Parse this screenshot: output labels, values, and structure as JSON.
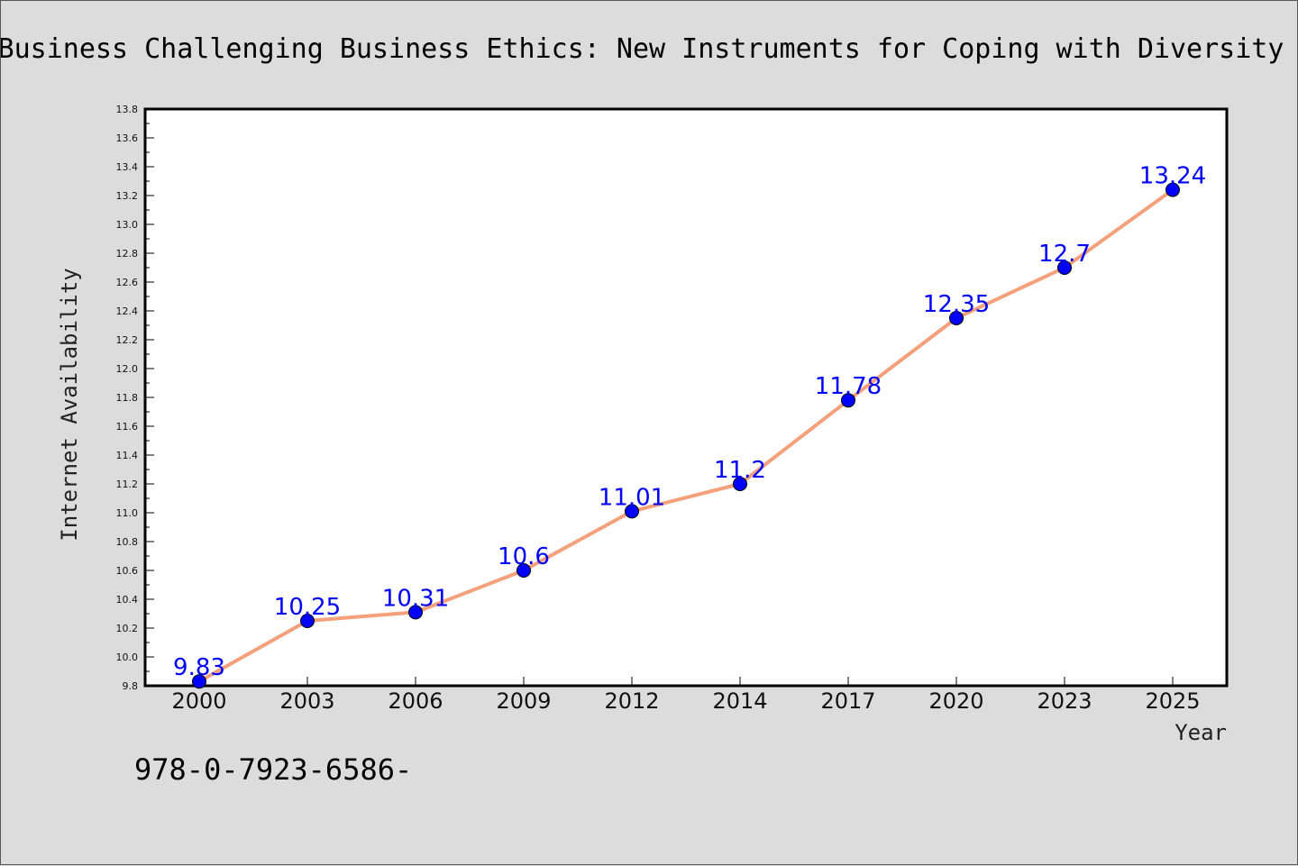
{
  "chart_data": {
    "type": "line",
    "title": "Business Challenging Business Ethics: New Instruments for Coping with Diversity",
    "xlabel": "Year",
    "ylabel": "Internet Availability",
    "categories": [
      "2000",
      "2003",
      "2006",
      "2009",
      "2012",
      "2014",
      "2017",
      "2020",
      "2023",
      "2025"
    ],
    "series": [
      {
        "values": [
          9.83,
          10.25,
          10.31,
          10.6,
          11.01,
          11.2,
          11.78,
          12.35,
          12.7,
          13.24
        ],
        "line_color": "#f4a07a",
        "marker_color": "#0000ff",
        "label_color": "#0000ff"
      }
    ],
    "ylim": [
      9.8,
      13.8
    ],
    "yticks": [
      "9.8",
      "10.0",
      "10.2",
      "10.4",
      "10.6",
      "10.8",
      "11.0",
      "11.2",
      "11.4",
      "11.6",
      "11.8",
      "12.0",
      "12.2",
      "12.4",
      "12.6",
      "12.8",
      "13.0",
      "13.2",
      "13.4",
      "13.6",
      "13.8"
    ],
    "grid": false,
    "data_labels": [
      "9.83",
      "10.25",
      "10.31",
      "10.6",
      "11.01",
      "11.2",
      "11.78",
      "12.35",
      "12.7",
      "13.24"
    ]
  },
  "footer": {
    "text": "978-0-7923-6586-"
  },
  "colors": {
    "background": "#dcdcdc",
    "plot_background": "#ffffff"
  }
}
